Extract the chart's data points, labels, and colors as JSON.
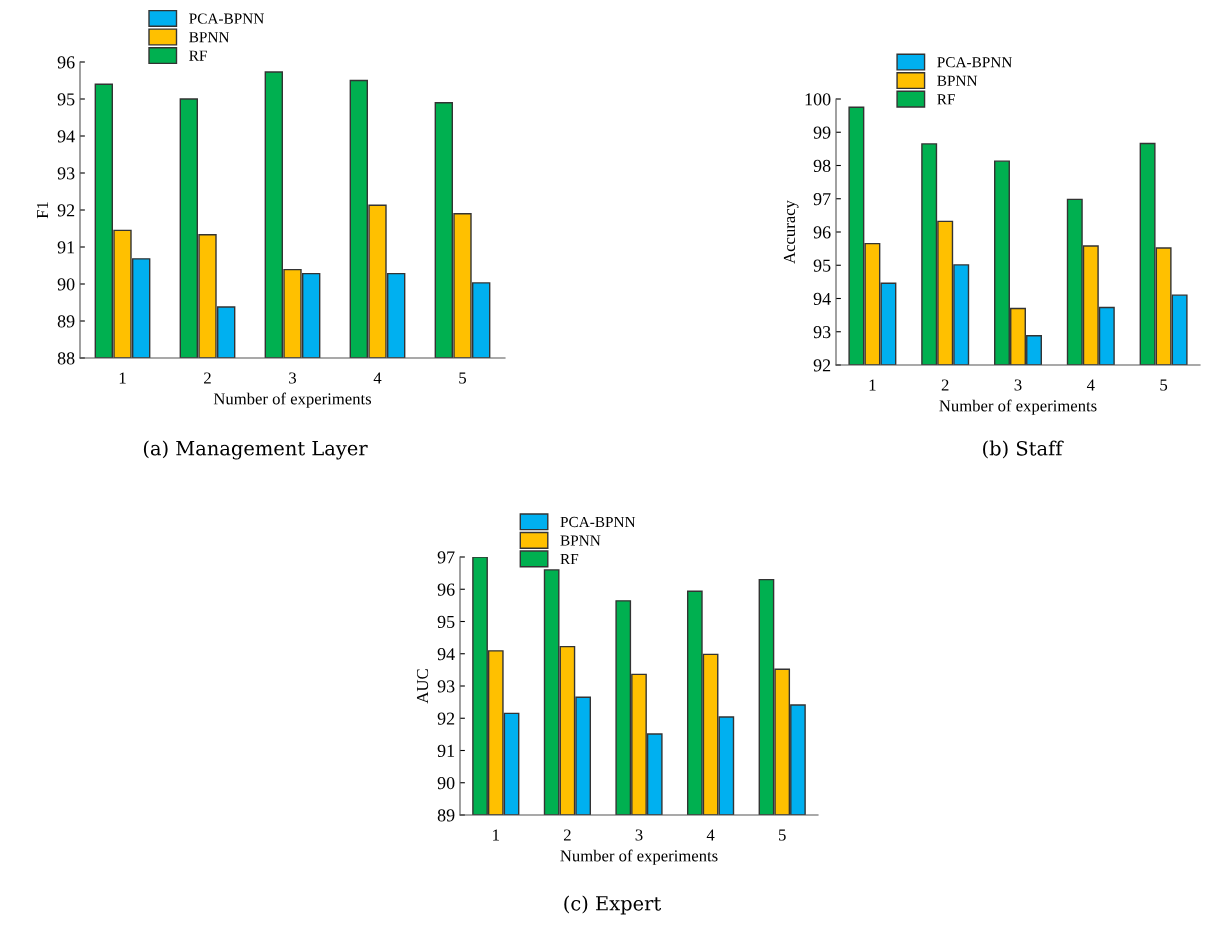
{
  "chart_data": [
    {
      "type": "bar",
      "ylabel": "F1",
      "xlabel": "Number of experiments",
      "categories": [
        "1",
        "2",
        "3",
        "4",
        "5"
      ],
      "ylim": [
        88,
        96
      ],
      "yticks": [
        88,
        89,
        90,
        91,
        92,
        93,
        94,
        95,
        96
      ],
      "legend": "top left",
      "grid": false,
      "annotations": [
        "(a) Management Layer"
      ],
      "series": [
        {
          "name": "RF",
          "color": "#00b050",
          "values": [
            95.4,
            95.0,
            95.73,
            95.5,
            94.9
          ]
        },
        {
          "name": "BPNN",
          "color": "#ffc000",
          "values": [
            91.45,
            91.33,
            90.39,
            92.13,
            91.9
          ]
        },
        {
          "name": "PCA-BPNN",
          "color": "#00b0f0",
          "values": [
            90.68,
            89.38,
            90.28,
            90.28,
            90.03
          ]
        }
      ]
    },
    {
      "type": "bar",
      "ylabel": "Accuracy",
      "xlabel": "Number of experiments",
      "categories": [
        "1",
        "2",
        "3",
        "4",
        "5"
      ],
      "ylim": [
        92,
        100
      ],
      "yticks": [
        92,
        93,
        94,
        95,
        96,
        97,
        98,
        99,
        100
      ],
      "legend": "top left",
      "grid": false,
      "annotations": [
        "(b) Staff"
      ],
      "series": [
        {
          "name": "RF",
          "color": "#00b050",
          "values": [
            99.75,
            98.65,
            98.13,
            96.98,
            98.66
          ]
        },
        {
          "name": "BPNN",
          "color": "#ffc000",
          "values": [
            95.65,
            96.32,
            93.7,
            95.58,
            95.52
          ]
        },
        {
          "name": "PCA-BPNN",
          "color": "#00b0f0",
          "values": [
            94.46,
            95.01,
            92.88,
            93.73,
            94.1
          ]
        }
      ]
    },
    {
      "type": "bar",
      "ylabel": "AUC",
      "xlabel": "Number of experiments",
      "categories": [
        "1",
        "2",
        "3",
        "4",
        "5"
      ],
      "ylim": [
        89,
        97
      ],
      "yticks": [
        89,
        90,
        91,
        92,
        93,
        94,
        95,
        96,
        97
      ],
      "legend": "top left",
      "grid": false,
      "annotations": [
        "(c) Expert"
      ],
      "series": [
        {
          "name": "RF",
          "color": "#00b050",
          "values": [
            97.0,
            96.6,
            95.64,
            95.94,
            96.3
          ]
        },
        {
          "name": "BPNN",
          "color": "#ffc000",
          "values": [
            94.09,
            94.22,
            93.36,
            93.98,
            93.52
          ]
        },
        {
          "name": "PCA-BPNN",
          "color": "#00b0f0",
          "values": [
            92.15,
            92.65,
            91.51,
            92.04,
            92.41
          ]
        }
      ]
    }
  ]
}
